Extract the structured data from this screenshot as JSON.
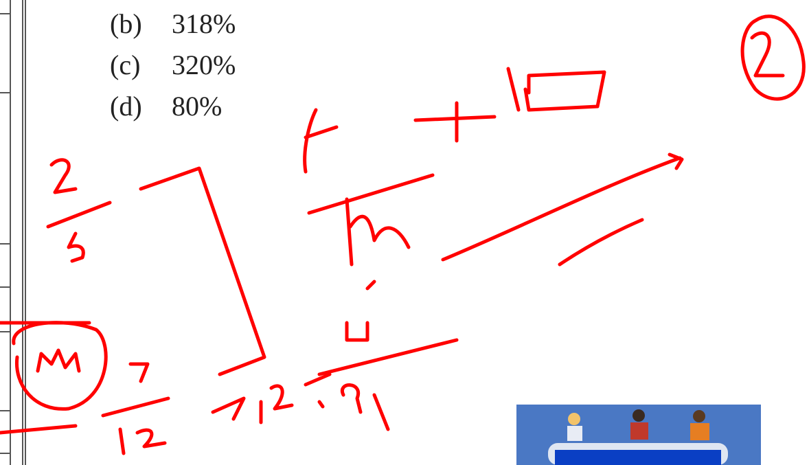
{
  "options": [
    {
      "label": "(b)",
      "text": "318%"
    },
    {
      "label": "(c)",
      "text": "320%"
    },
    {
      "label": "(d)",
      "text": "80%"
    }
  ]
}
